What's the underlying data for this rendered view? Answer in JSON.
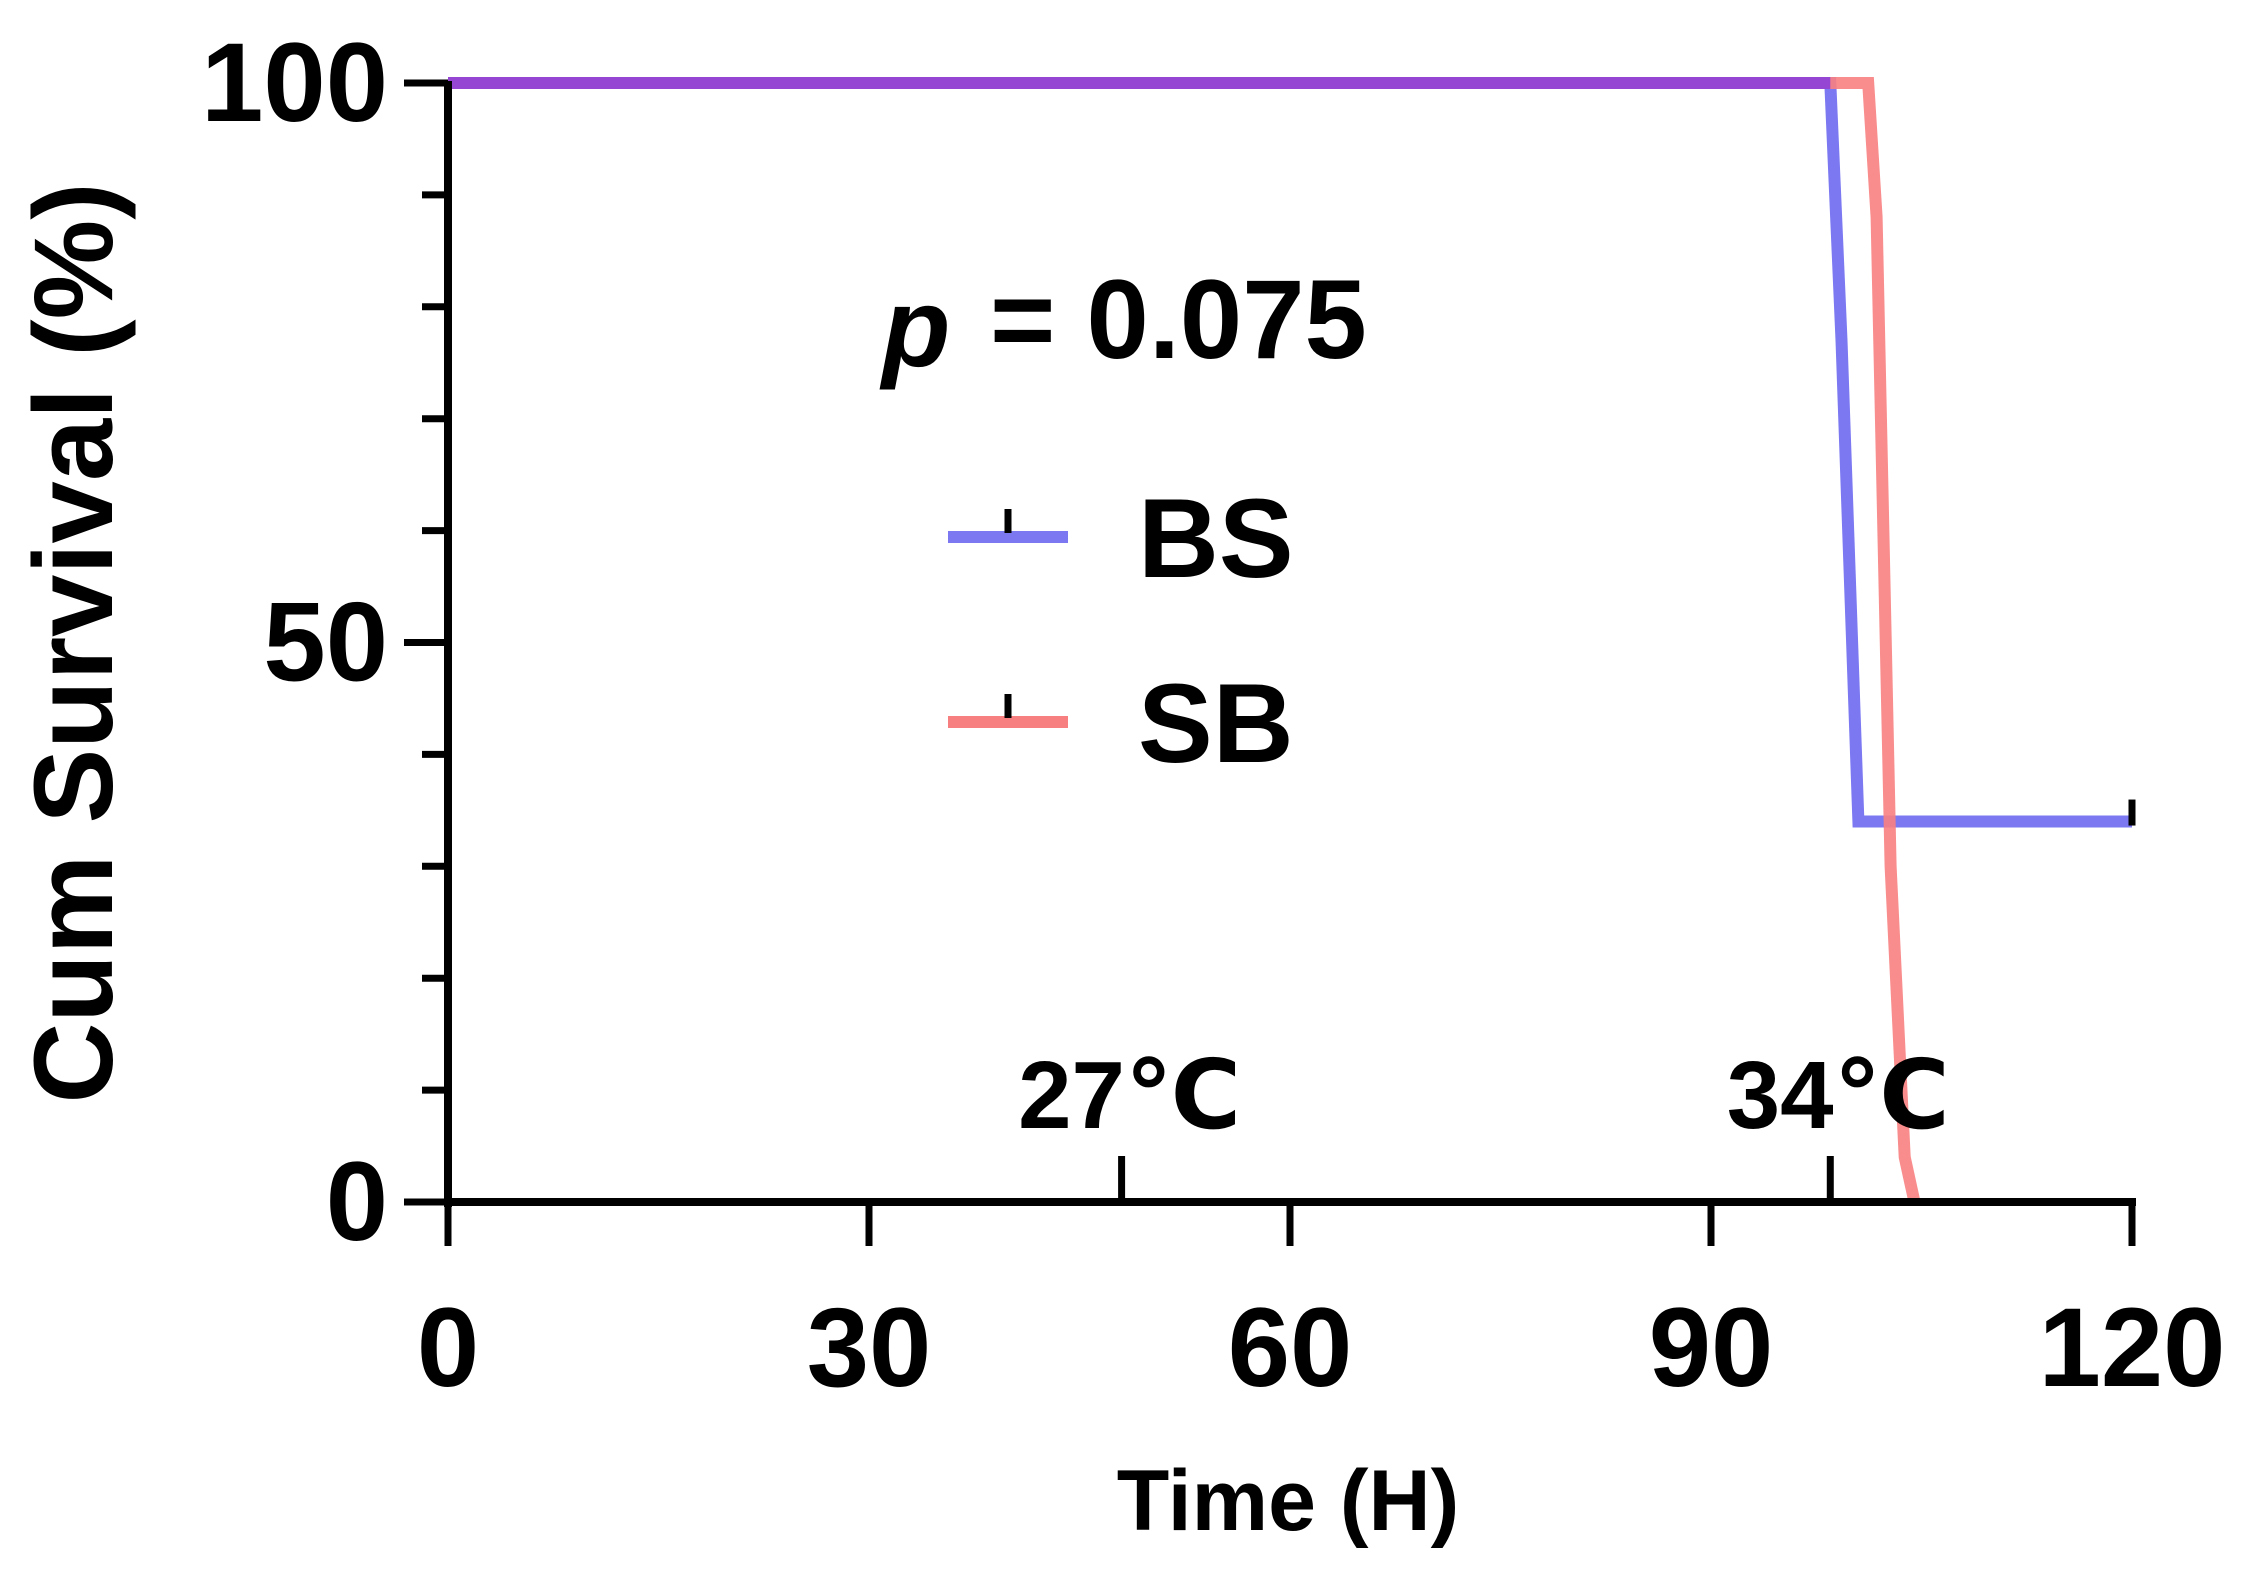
{
  "chart_data": {
    "type": "line",
    "step": true,
    "xlabel": "Time (H)",
    "ylabel": "Cum Survival (%)",
    "xlim": [
      0,
      120
    ],
    "ylim": [
      0,
      100
    ],
    "xticks": [
      "0",
      "30",
      "60",
      "90",
      "120"
    ],
    "yticks": [
      "0",
      "50",
      "100"
    ],
    "grid": false,
    "legend_position": "center",
    "annotation": {
      "p_label": "p",
      "p_value": "= 0.075"
    },
    "phases": [
      {
        "label": "27℃",
        "x": 48
      },
      {
        "label": "34℃",
        "x": 98.5
      }
    ],
    "series": [
      {
        "name": "BS",
        "color": "#7b78f2",
        "x": [
          0,
          98.5,
          99.3,
          100.5,
          120
        ],
        "y": [
          100,
          100,
          77,
          34,
          34
        ],
        "censor_x": [
          120
        ],
        "censor_y": [
          34
        ]
      },
      {
        "name": "SB",
        "color": "#f87f7f",
        "x": [
          0,
          101.2,
          101.8,
          102.8,
          103.8,
          104.5
        ],
        "y": [
          100,
          100,
          88,
          30,
          4,
          0
        ]
      }
    ],
    "overlap_color": "#9547d4"
  }
}
